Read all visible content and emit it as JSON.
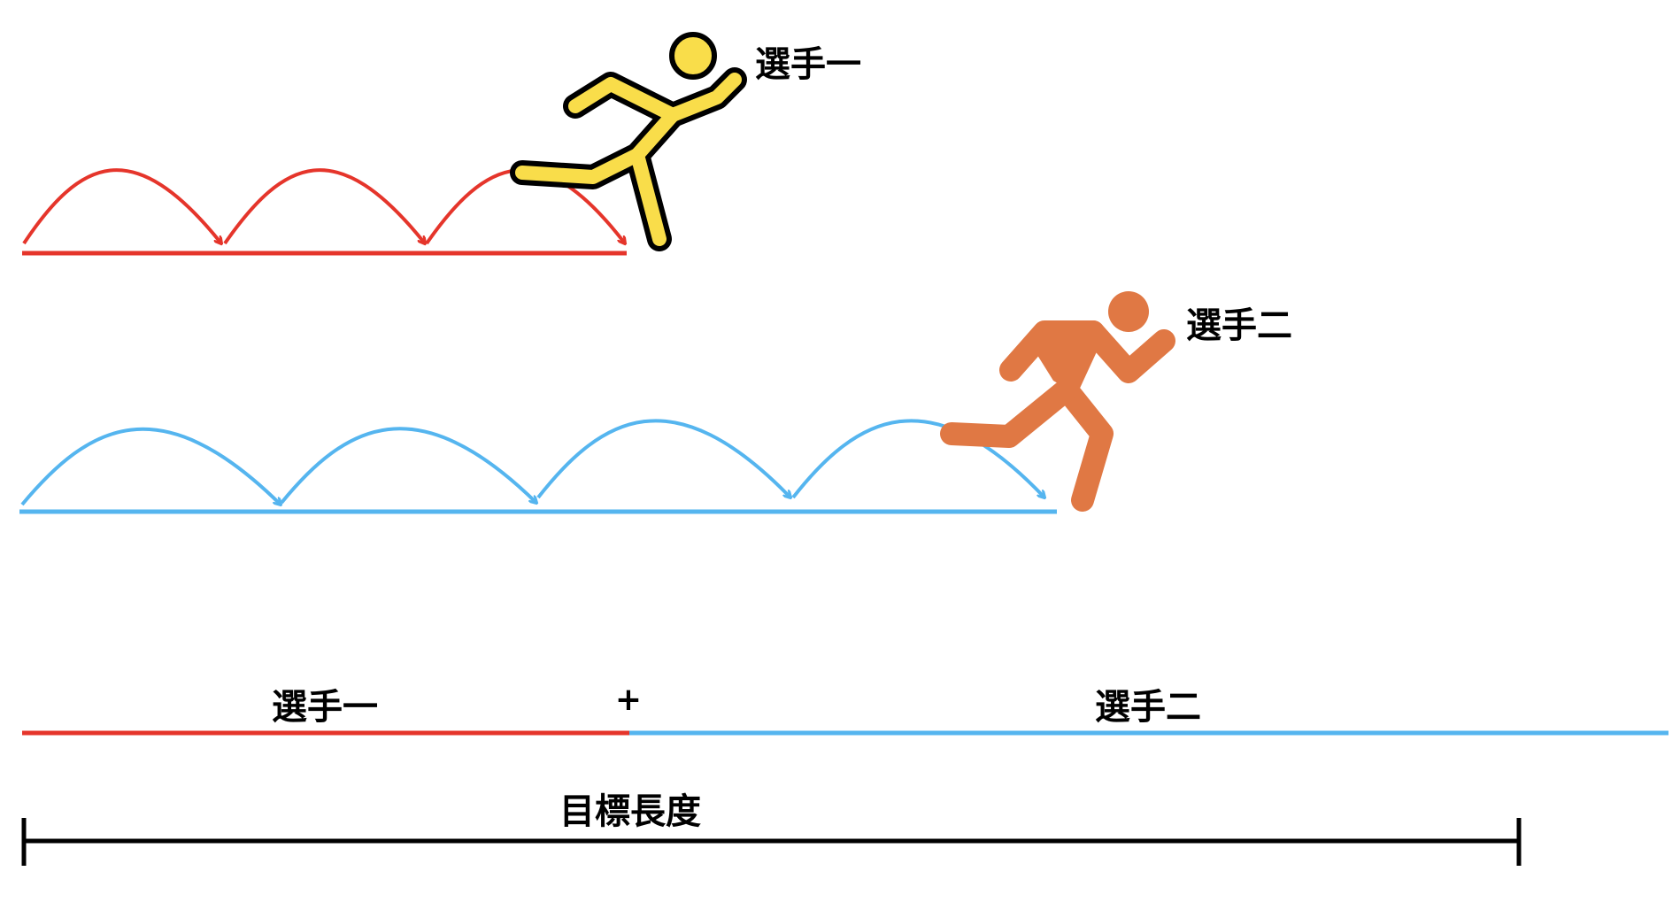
{
  "player1": {
    "label": "選手一",
    "color": "#e5352b",
    "runner_fill": "#f9dd4a",
    "runner_outline": "#000000",
    "hops": 3
  },
  "player2": {
    "label": "選手二",
    "color": "#55b5ef",
    "runner_fill": "#e07844",
    "hops": 4
  },
  "combined": {
    "left_label": "選手一",
    "plus": "+",
    "right_label": "選手二"
  },
  "target": {
    "label": "目標長度"
  }
}
